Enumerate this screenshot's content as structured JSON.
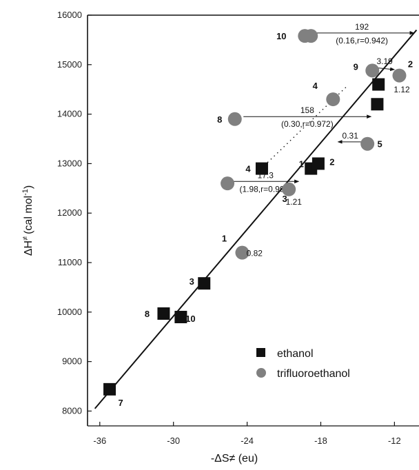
{
  "chart_data": {
    "type": "scatter",
    "xlabel": "-ΔS≠ (eu)",
    "ylabel_main": "ΔH",
    "ylabel_sup": "≠",
    "ylabel_unit": "(cal mol",
    "ylabel_unit_sup": "-1",
    "ylabel_unit_end": ")",
    "xlim": [
      -37,
      -10
    ],
    "ylim": [
      7700,
      16000
    ],
    "x_ticks": [
      -36,
      -30,
      -24,
      -18,
      -12
    ],
    "y_ticks": [
      8000,
      9000,
      10000,
      11000,
      12000,
      13000,
      14000,
      15000,
      16000
    ],
    "x_tick_labels": [
      "-36",
      "-30",
      "-24",
      "-18",
      "-12"
    ],
    "y_tick_labels": [
      "8000",
      "9000",
      "10000",
      "11000",
      "12000",
      "13000",
      "14000",
      "15000",
      "16000"
    ],
    "grid": false,
    "legend_position": "bottom-right",
    "colors": {
      "ethanol": "#111111",
      "trifluoroethanol": "#808080",
      "line": "#111111"
    },
    "series": [
      {
        "name": "ethanol",
        "marker": "square",
        "points": [
          {
            "x": -35.2,
            "y": 8440,
            "label": "7"
          },
          {
            "x": -30.8,
            "y": 9970,
            "label": "8"
          },
          {
            "x": -29.4,
            "y": 9900,
            "label": "10"
          },
          {
            "x": -27.5,
            "y": 10580,
            "label": "3"
          },
          {
            "x": -22.8,
            "y": 12900,
            "label": "4"
          },
          {
            "x": -18.8,
            "y": 12900,
            "label": "1"
          },
          {
            "x": -18.2,
            "y": 13000,
            "label": "2"
          },
          {
            "x": -13.3,
            "y": 14600,
            "label": ""
          },
          {
            "x": -13.4,
            "y": 14200,
            "label": ""
          }
        ]
      },
      {
        "name": "trifluoroethanol",
        "marker": "circle",
        "points": [
          {
            "x": -24.4,
            "y": 11200,
            "label": "1"
          },
          {
            "x": -25.6,
            "y": 12600,
            "label": ""
          },
          {
            "x": -20.6,
            "y": 12480,
            "label": "3"
          },
          {
            "x": -25.0,
            "y": 13900,
            "label": "8"
          },
          {
            "x": -17.0,
            "y": 14300,
            "label": "4"
          },
          {
            "x": -14.2,
            "y": 13400,
            "label": "5"
          },
          {
            "x": -19.3,
            "y": 15580,
            "label": "10"
          },
          {
            "x": -18.8,
            "y": 15580,
            "label": ""
          },
          {
            "x": -13.8,
            "y": 14880,
            "label": "9"
          },
          {
            "x": -11.6,
            "y": 14780,
            "label": "2"
          }
        ]
      }
    ],
    "fit_line": {
      "x": [
        -36.4,
        -10.2
      ],
      "y": [
        8050,
        15700
      ]
    },
    "dotted_line": {
      "x": [
        -22.6,
        -15.8
      ],
      "y": [
        12960,
        14580
      ]
    },
    "arrows": [
      {
        "from": [
          -18.9,
          15640
        ],
        "to": [
          -10.4,
          15640
        ],
        "value": "192",
        "stats": "(0.16,r=0.942)"
      },
      {
        "from": [
          -13.6,
          14940
        ],
        "to": [
          -12.0,
          14900
        ],
        "value": "3.19",
        "stats": ""
      },
      {
        "from": [
          -24.3,
          13950
        ],
        "to": [
          -13.9,
          13950
        ],
        "value": "158",
        "stats": "(0.30,r=0.972)"
      },
      {
        "from": [
          -14.6,
          13440
        ],
        "to": [
          -16.6,
          13440
        ],
        "value": "0.31",
        "stats": ""
      },
      {
        "from": [
          -25.2,
          12640
        ],
        "to": [
          -19.8,
          12640
        ],
        "value": "17.3",
        "stats": "(1.98,r=0.993)"
      }
    ],
    "value_annotations": [
      {
        "text": "0.82",
        "x": -23.4,
        "y": 11130
      },
      {
        "text": "1.21",
        "x": -20.2,
        "y": 12170
      },
      {
        "text": "1.12",
        "x": -11.4,
        "y": 14440
      }
    ]
  }
}
